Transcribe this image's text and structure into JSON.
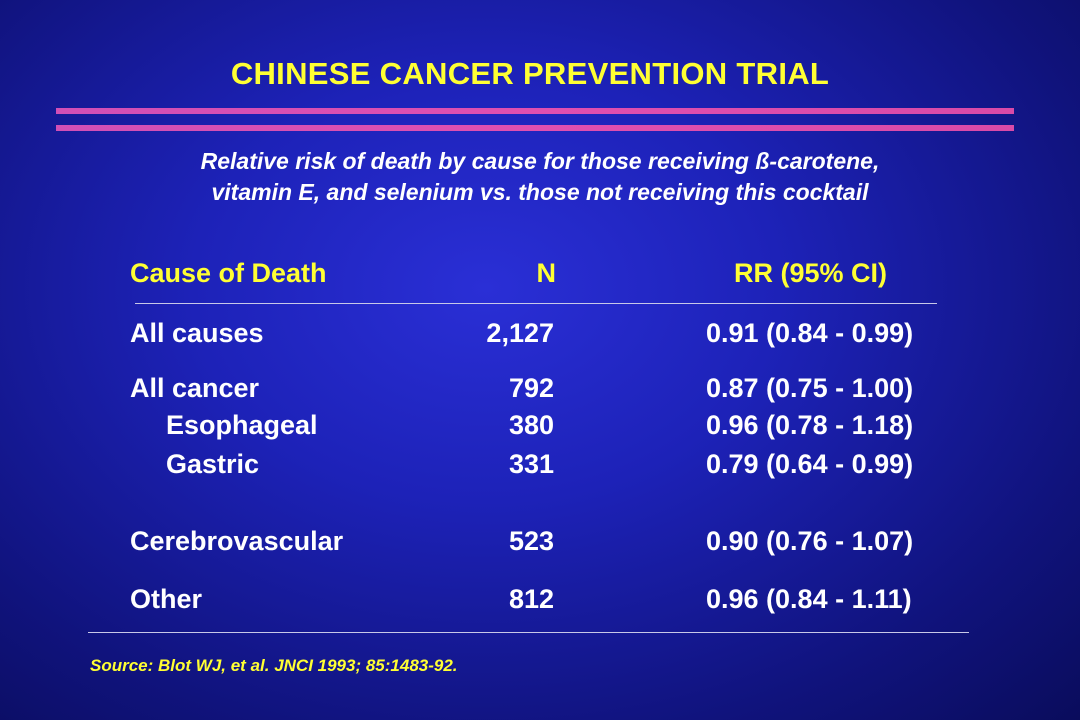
{
  "title": "CHINESE CANCER PREVENTION TRIAL",
  "subtitle": {
    "line1": "Relative risk of death by cause for those receiving ß-carotene,",
    "line2": "vitamin E, and selenium vs. those not receiving this cocktail"
  },
  "table": {
    "headers": {
      "cause": "Cause of Death",
      "n": "N",
      "rr": "RR (95% CI)"
    },
    "rows": [
      {
        "cause": "All causes",
        "n": "2,127",
        "rr": "0.91 (0.84 - 0.99)"
      },
      {
        "cause": "All cancer",
        "n": "792",
        "rr": "0.87 (0.75 - 1.00)"
      },
      {
        "cause": "Esophageal",
        "n": "380",
        "rr": "0.96 (0.78 - 1.18)"
      },
      {
        "cause": "Gastric",
        "n": "331",
        "rr": "0.79 (0.64 - 0.99)"
      },
      {
        "cause": "Cerebrovascular",
        "n": "523",
        "rr": "0.90 (0.76 - 1.07)"
      },
      {
        "cause": "Other",
        "n": "812",
        "rr": "0.96 (0.84 - 1.11)"
      }
    ]
  },
  "source": "Source:  Blot WJ, et al.  JNCI 1993; 85:1483-92.",
  "colors": {
    "title": "#ffff33",
    "accent_rule": "#d94aa8",
    "background": "#1d22b8"
  }
}
